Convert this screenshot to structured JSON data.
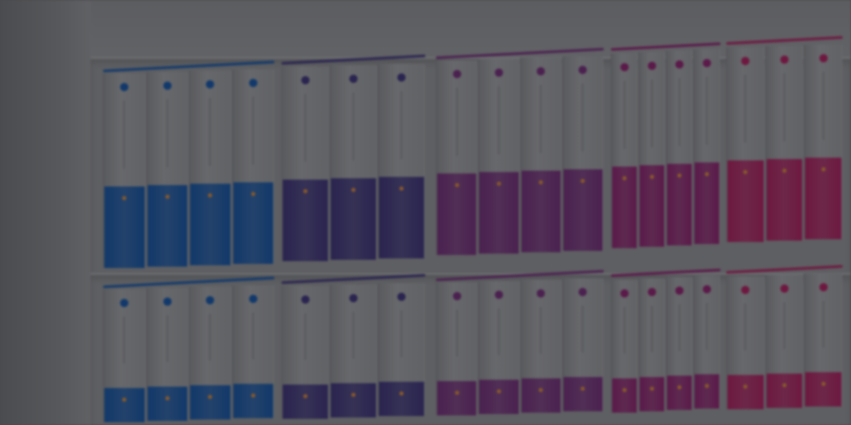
{
  "scene": {
    "description_free": true,
    "colors": {
      "background": "#4a4a4d",
      "blue": "#12396b",
      "indigo": "#2a2450",
      "purple": "#4b2150",
      "magenta": "#5b1a4a",
      "pink": "#6e1840"
    },
    "groups": [
      {
        "color": "blue",
        "icon": "globe-icon"
      },
      {
        "color": "indigo",
        "icon": "drop-icon"
      },
      {
        "color": "purple",
        "icon": "flower-icon"
      },
      {
        "color": "magenta",
        "icon": "flower-icon"
      },
      {
        "color": "pink",
        "icon": "pen-icon"
      }
    ]
  }
}
